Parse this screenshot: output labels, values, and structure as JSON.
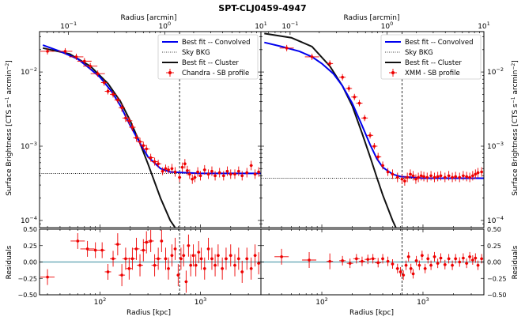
{
  "figure": {
    "title": "SPT-CLJ0459-4947",
    "top_axis_label": "Radius [arcmin]",
    "bottom_axis_label": "Radius [kpc]",
    "left_y_label": "Surface Brightness [CTS s",
    "left_y_label_sup1": "−1",
    "left_y_label_mid": " arcmin",
    "left_y_label_sup2": "−2",
    "left_y_label_end": "]",
    "residual_label": "Residuals"
  },
  "chart_data": [
    {
      "type": "scatter",
      "panel": "chandra-sb",
      "x_scale": "log",
      "y_scale": "log",
      "xlim_kpc": [
        25,
        4000
      ],
      "ylim": [
        8e-05,
        0.035
      ],
      "top_xlim_arcmin": [
        0.05,
        10
      ],
      "top_ticks": [
        {
          "value": 0.1,
          "base": "10",
          "exp": "−1"
        },
        {
          "value": 1,
          "base": "10",
          "exp": "0"
        },
        {
          "value": 10,
          "base": "10",
          "exp": "1"
        }
      ],
      "bottom_ticks": [
        {
          "value": 100,
          "base": "10",
          "exp": "2"
        },
        {
          "value": 1000,
          "base": "10",
          "exp": "3"
        }
      ],
      "y_ticks": [
        {
          "value": 0.0001,
          "base": "10",
          "exp": "−4"
        },
        {
          "value": 0.001,
          "base": "10",
          "exp": "−3"
        },
        {
          "value": 0.01,
          "base": "10",
          "exp": "−2"
        }
      ],
      "y_tick_side": "left",
      "r500_kpc": 620,
      "sky_bkg": 0.00043,
      "legend": {
        "placement": "top-right",
        "entries": [
          "Best fit -- Convolved",
          "Sky BKG",
          "Best fit -- Cluster",
          "Chandra - SB profile"
        ]
      },
      "convolved": [
        [
          27,
          0.023
        ],
        [
          40,
          0.019
        ],
        [
          60,
          0.015
        ],
        [
          80,
          0.011
        ],
        [
          100,
          0.0085
        ],
        [
          130,
          0.0055
        ],
        [
          160,
          0.0035
        ],
        [
          200,
          0.0019
        ],
        [
          250,
          0.0011
        ],
        [
          300,
          0.00072
        ],
        [
          400,
          0.0005
        ],
        [
          500,
          0.00045
        ],
        [
          700,
          0.00044
        ],
        [
          1000,
          0.00043
        ],
        [
          4000,
          0.00043
        ]
      ],
      "cluster": [
        [
          27,
          0.021
        ],
        [
          50,
          0.0175
        ],
        [
          80,
          0.012
        ],
        [
          120,
          0.007
        ],
        [
          160,
          0.004
        ],
        [
          200,
          0.0022
        ],
        [
          250,
          0.0011
        ],
        [
          300,
          0.00058
        ],
        [
          400,
          0.0002
        ],
        [
          500,
          0.0001
        ],
        [
          560,
          8e-05
        ]
      ],
      "points": [
        [
          30,
          0.019
        ],
        [
          45,
          0.019
        ],
        [
          58,
          0.016
        ],
        [
          70,
          0.014
        ],
        [
          80,
          0.012
        ],
        [
          95,
          0.0095
        ],
        [
          110,
          0.0072
        ],
        [
          120,
          0.0055
        ],
        [
          135,
          0.005
        ],
        [
          150,
          0.0042
        ],
        [
          165,
          0.0033
        ],
        [
          180,
          0.0024
        ],
        [
          195,
          0.0022
        ],
        [
          210,
          0.0018
        ],
        [
          230,
          0.0013
        ],
        [
          250,
          0.00115
        ],
        [
          270,
          0.00102
        ],
        [
          290,
          0.00092
        ],
        [
          320,
          0.0007
        ],
        [
          350,
          0.00062
        ],
        [
          380,
          0.00058
        ],
        [
          420,
          0.00046
        ],
        [
          450,
          0.0005
        ],
        [
          480,
          0.00048
        ],
        [
          520,
          0.0005
        ],
        [
          560,
          0.00045
        ],
        [
          620,
          0.00038
        ],
        [
          660,
          0.00052
        ],
        [
          700,
          0.00058
        ],
        [
          740,
          0.00047
        ],
        [
          780,
          0.00042
        ],
        [
          830,
          0.00036
        ],
        [
          880,
          0.00038
        ],
        [
          940,
          0.00045
        ],
        [
          1000,
          0.0004
        ],
        [
          1100,
          0.00048
        ],
        [
          1200,
          0.00042
        ],
        [
          1300,
          0.00046
        ],
        [
          1400,
          0.0004
        ],
        [
          1550,
          0.00044
        ],
        [
          1700,
          0.0004
        ],
        [
          1850,
          0.00046
        ],
        [
          2000,
          0.00042
        ],
        [
          2200,
          0.00042
        ],
        [
          2400,
          0.00046
        ],
        [
          2600,
          0.0004
        ],
        [
          2900,
          0.00044
        ],
        [
          3200,
          0.00055
        ],
        [
          3500,
          0.00042
        ],
        [
          3800,
          0.00045
        ]
      ]
    },
    {
      "type": "scatter",
      "panel": "xmm-sb",
      "x_scale": "log",
      "y_scale": "log",
      "xlim_kpc": [
        25,
        4000
      ],
      "ylim": [
        8e-05,
        0.035
      ],
      "top_xlim_arcmin": [
        0.05,
        10
      ],
      "top_ticks": [
        {
          "value": 0.1,
          "base": "10",
          "exp": "−1"
        },
        {
          "value": 1,
          "base": "10",
          "exp": "0"
        },
        {
          "value": 10,
          "base": "10",
          "exp": "1"
        }
      ],
      "bottom_ticks": [
        {
          "value": 100,
          "base": "10",
          "exp": "2"
        },
        {
          "value": 1000,
          "base": "10",
          "exp": "3"
        }
      ],
      "y_ticks": [
        {
          "value": 0.0001,
          "base": "10",
          "exp": "−4"
        },
        {
          "value": 0.001,
          "base": "10",
          "exp": "−3"
        },
        {
          "value": 0.01,
          "base": "10",
          "exp": "−2"
        }
      ],
      "y_tick_side": "right",
      "r500_kpc": 620,
      "sky_bkg": 0.00037,
      "legend": {
        "placement": "top-right",
        "entries": [
          "Best fit -- Convolved",
          "Sky BKG",
          "Best fit -- Cluster",
          "XMM - SB profile"
        ]
      },
      "convolved": [
        [
          27,
          0.025
        ],
        [
          40,
          0.022
        ],
        [
          60,
          0.019
        ],
        [
          80,
          0.016
        ],
        [
          100,
          0.013
        ],
        [
          130,
          0.0095
        ],
        [
          160,
          0.0065
        ],
        [
          200,
          0.0038
        ],
        [
          250,
          0.0019
        ],
        [
          300,
          0.00105
        ],
        [
          350,
          0.00068
        ],
        [
          400,
          0.00052
        ],
        [
          500,
          0.00042
        ],
        [
          600,
          0.00039
        ],
        [
          800,
          0.00038
        ],
        [
          1000,
          0.00037
        ],
        [
          4000,
          0.00037
        ]
      ],
      "cluster": [
        [
          27,
          0.033
        ],
        [
          50,
          0.029
        ],
        [
          80,
          0.022
        ],
        [
          120,
          0.012
        ],
        [
          160,
          0.0065
        ],
        [
          200,
          0.0035
        ],
        [
          250,
          0.0015
        ],
        [
          300,
          0.00072
        ],
        [
          350,
          0.00038
        ],
        [
          400,
          0.00022
        ],
        [
          500,
          0.0001
        ],
        [
          540,
          8e-05
        ]
      ],
      "points": [
        [
          45,
          0.021
        ],
        [
          80,
          0.016
        ],
        [
          120,
          0.013
        ],
        [
          160,
          0.0085
        ],
        [
          185,
          0.006
        ],
        [
          210,
          0.0046
        ],
        [
          235,
          0.0038
        ],
        [
          265,
          0.0024
        ],
        [
          300,
          0.0014
        ],
        [
          330,
          0.001
        ],
        [
          360,
          0.00072
        ],
        [
          400,
          0.00055
        ],
        [
          450,
          0.00045
        ],
        [
          500,
          0.00042
        ],
        [
          560,
          0.00038
        ],
        [
          620,
          0.00036
        ],
        [
          660,
          0.00034
        ],
        [
          700,
          0.00038
        ],
        [
          750,
          0.00042
        ],
        [
          800,
          0.0004
        ],
        [
          850,
          0.00036
        ],
        [
          900,
          0.00038
        ],
        [
          960,
          0.0004
        ],
        [
          1020,
          0.00039
        ],
        [
          1100,
          0.00038
        ],
        [
          1200,
          0.0004
        ],
        [
          1300,
          0.00038
        ],
        [
          1400,
          0.00039
        ],
        [
          1500,
          0.0004
        ],
        [
          1650,
          0.00038
        ],
        [
          1800,
          0.0004
        ],
        [
          1950,
          0.00038
        ],
        [
          2100,
          0.00039
        ],
        [
          2300,
          0.00038
        ],
        [
          2500,
          0.0004
        ],
        [
          2700,
          0.00039
        ],
        [
          2900,
          0.00038
        ],
        [
          3100,
          0.0004
        ],
        [
          3300,
          0.00042
        ],
        [
          3500,
          0.00044
        ],
        [
          3800,
          0.00045
        ]
      ]
    },
    {
      "type": "scatter",
      "panel": "chandra-residuals",
      "x_scale": "log",
      "xlim_kpc": [
        25,
        4000
      ],
      "ylim": [
        -0.5,
        0.5
      ],
      "y_ticks": [
        {
          "value": 0.5,
          "label": "0.50"
        },
        {
          "value": 0.25,
          "label": "0.25"
        },
        {
          "value": 0,
          "label": "0.00"
        },
        {
          "value": -0.25,
          "label": "−0.25"
        },
        {
          "value": -0.5,
          "label": "−0.50"
        }
      ],
      "y_tick_side": "left",
      "r500_kpc": 620,
      "points": [
        [
          30,
          -0.23
        ],
        [
          60,
          0.32
        ],
        [
          75,
          0.2
        ],
        [
          90,
          0.18
        ],
        [
          105,
          0.18
        ],
        [
          120,
          -0.15
        ],
        [
          135,
          0.05
        ],
        [
          150,
          0.27
        ],
        [
          165,
          -0.2
        ],
        [
          180,
          0.05
        ],
        [
          195,
          -0.1
        ],
        [
          210,
          0.05
        ],
        [
          230,
          0.2
        ],
        [
          250,
          -0.05
        ],
        [
          270,
          0.18
        ],
        [
          290,
          0.3
        ],
        [
          320,
          0.32
        ],
        [
          350,
          -0.05
        ],
        [
          380,
          0.05
        ],
        [
          410,
          0.32
        ],
        [
          450,
          0.05
        ],
        [
          480,
          -0.1
        ],
        [
          520,
          0.1
        ],
        [
          560,
          0.2
        ],
        [
          600,
          -0.2
        ],
        [
          640,
          0.05
        ],
        [
          680,
          0.1
        ],
        [
          720,
          -0.3
        ],
        [
          760,
          0.25
        ],
        [
          800,
          -0.05
        ],
        [
          850,
          0.1
        ],
        [
          900,
          -0.05
        ],
        [
          960,
          0.15
        ],
        [
          1020,
          0.05
        ],
        [
          1100,
          -0.1
        ],
        [
          1200,
          0.2
        ],
        [
          1300,
          0.05
        ],
        [
          1400,
          -0.05
        ],
        [
          1500,
          0.1
        ],
        [
          1650,
          -0.1
        ],
        [
          1800,
          0.05
        ],
        [
          2000,
          0.1
        ],
        [
          2200,
          -0.05
        ],
        [
          2400,
          0.05
        ],
        [
          2600,
          -0.15
        ],
        [
          2900,
          0.05
        ],
        [
          3200,
          -0.1
        ],
        [
          3500,
          0.1
        ],
        [
          3800,
          -0.02
        ]
      ]
    },
    {
      "type": "scatter",
      "panel": "xmm-residuals",
      "x_scale": "log",
      "xlim_kpc": [
        25,
        4000
      ],
      "ylim": [
        -0.5,
        0.5
      ],
      "y_ticks": [
        {
          "value": 0.5,
          "label": "0.50"
        },
        {
          "value": 0.25,
          "label": "0.25"
        },
        {
          "value": 0,
          "label": "0.00"
        },
        {
          "value": -0.25,
          "label": "−0.25"
        },
        {
          "value": -0.5,
          "label": "−0.50"
        }
      ],
      "y_tick_side": "right",
      "r500_kpc": 620,
      "points": [
        [
          40,
          0.08
        ],
        [
          75,
          0.03
        ],
        [
          120,
          0.01
        ],
        [
          160,
          0.02
        ],
        [
          190,
          -0.02
        ],
        [
          220,
          0.05
        ],
        [
          250,
          0.01
        ],
        [
          285,
          0.04
        ],
        [
          320,
          0.05
        ],
        [
          360,
          -0.01
        ],
        [
          400,
          0.05
        ],
        [
          450,
          0.01
        ],
        [
          500,
          -0.03
        ],
        [
          560,
          -0.1
        ],
        [
          600,
          -0.15
        ],
        [
          640,
          -0.2
        ],
        [
          680,
          -0.05
        ],
        [
          720,
          0.08
        ],
        [
          760,
          -0.1
        ],
        [
          800,
          -0.18
        ],
        [
          860,
          0.02
        ],
        [
          920,
          -0.05
        ],
        [
          980,
          0.1
        ],
        [
          1050,
          -0.1
        ],
        [
          1120,
          0.05
        ],
        [
          1200,
          -0.05
        ],
        [
          1300,
          0.08
        ],
        [
          1400,
          -0.02
        ],
        [
          1500,
          0.06
        ],
        [
          1650,
          -0.04
        ],
        [
          1800,
          0.05
        ],
        [
          1950,
          -0.05
        ],
        [
          2100,
          0.05
        ],
        [
          2300,
          0
        ],
        [
          2500,
          0.06
        ],
        [
          2700,
          -0.02
        ],
        [
          2900,
          0.08
        ],
        [
          3100,
          0.03
        ],
        [
          3300,
          0.06
        ],
        [
          3500,
          -0.05
        ],
        [
          3800,
          0.05
        ]
      ]
    }
  ]
}
